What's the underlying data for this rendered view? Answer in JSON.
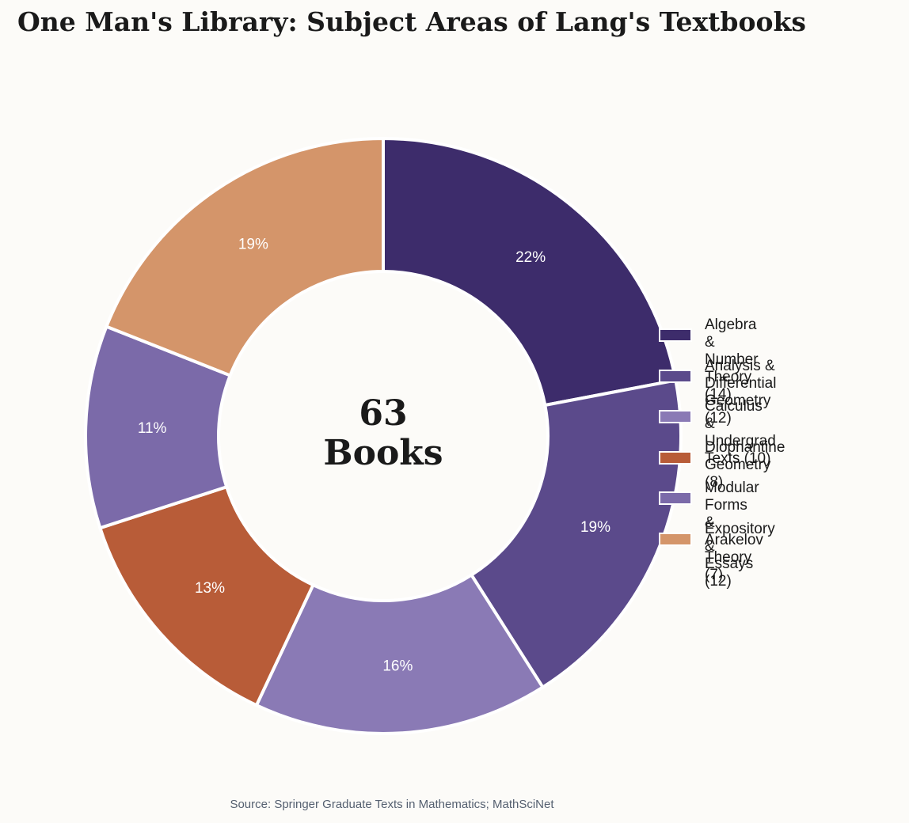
{
  "chart_data": {
    "type": "donut",
    "title": "One Man's Library: Subject Areas of Lang's Textbooks",
    "center_label": "63\nBooks",
    "categories": [
      "Algebra &\nNumber Theory (14)",
      "Analysis &\nDifferential Geometry (12)",
      "Calculus &\nUndergrad Texts (10)",
      "Diophantine\nGeometry (8)",
      "Modular Forms\n& Arakelov Theory (7)",
      "Expository &\nEssays (12)"
    ],
    "values": [
      22,
      19,
      16,
      13,
      11,
      19
    ],
    "value_labels": [
      "22%",
      "19%",
      "16%",
      "13%",
      "11%",
      "19%"
    ],
    "colors": [
      "#3d2c6b",
      "#5b4a8b",
      "#8a7ab5",
      "#b85c38",
      "#7b6aa9",
      "#d4956a"
    ],
    "source": "Source: Springer Graduate Texts in Mathematics; MathSciNet"
  }
}
